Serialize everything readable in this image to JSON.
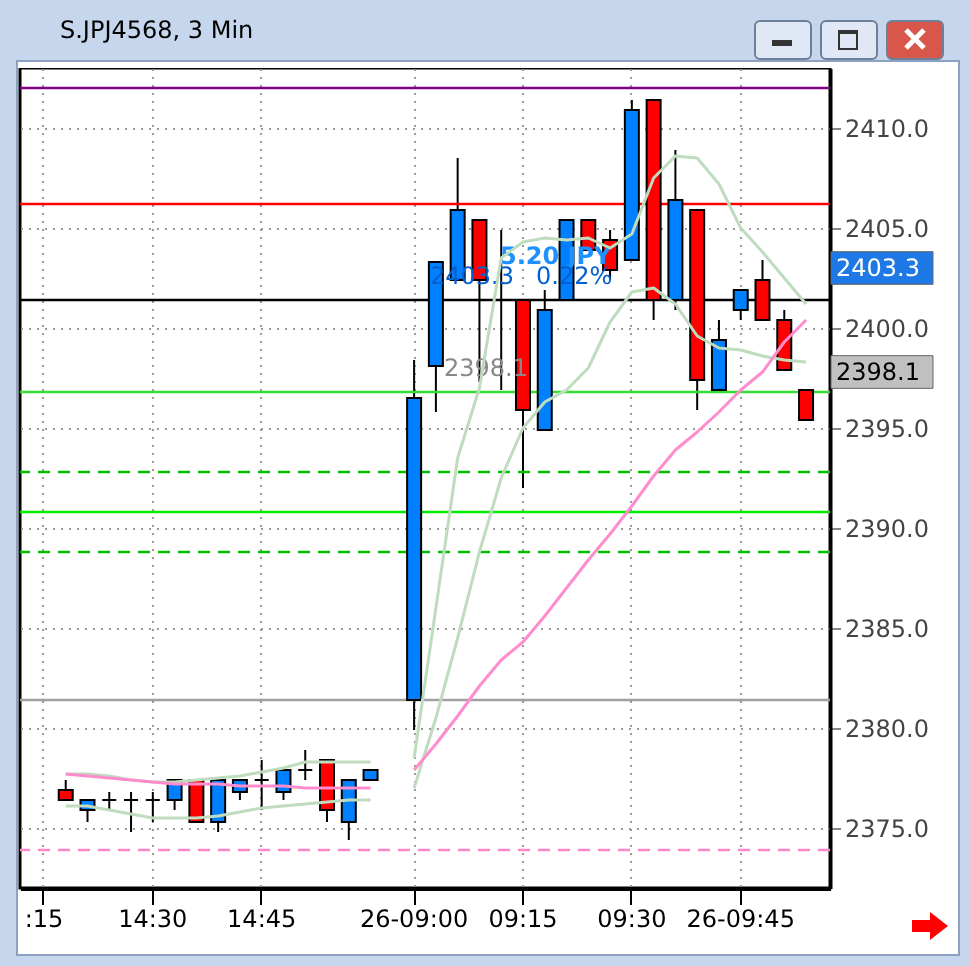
{
  "chart_data": {
    "type": "candlestick",
    "title": "S.JPJ4568, 3 Min",
    "categories": [
      ":15",
      null,
      null,
      null,
      null,
      "14:30",
      null,
      null,
      null,
      null,
      "14:45",
      null,
      null,
      null,
      null,
      null,
      null,
      "26-09:00",
      null,
      null,
      null,
      null,
      "09:15",
      null,
      null,
      null,
      null,
      "09:30",
      null,
      null,
      null,
      null,
      "26-09:45",
      null,
      null,
      null
    ],
    "ohlc": [
      null,
      [
        2376.9,
        2377.4,
        2376.4,
        2376.4
      ],
      [
        2375.9,
        2376.4,
        2375.3,
        2376.4
      ],
      [
        2376.4,
        2376.8,
        2375.9,
        2376.4
      ],
      [
        2376.4,
        2376.8,
        2374.8,
        2376.4
      ],
      [
        2376.4,
        2376.8,
        2375.3,
        2376.4
      ],
      [
        2376.4,
        2377.4,
        2375.9,
        2377.4
      ],
      [
        2377.4,
        2377.4,
        2375.3,
        2375.3
      ],
      [
        2375.3,
        2377.4,
        2374.8,
        2377.4
      ],
      [
        2376.8,
        2377.4,
        2376.4,
        2377.4
      ],
      [
        2377.4,
        2378.4,
        2375.9,
        2377.4
      ],
      [
        2376.8,
        2377.9,
        2376.4,
        2377.9
      ],
      [
        2377.9,
        2378.9,
        2377.4,
        2377.9
      ],
      [
        2378.4,
        2378.4,
        2375.3,
        2375.9
      ],
      [
        2375.3,
        2377.4,
        2374.4,
        2377.4
      ],
      [
        2377.4,
        2377.9,
        2377.4,
        2377.9
      ],
      null,
      [
        2381.4,
        2398.4,
        2379.9,
        2396.5
      ],
      [
        2398.1,
        2403.3,
        2395.8,
        2403.3
      ],
      [
        2402.4,
        2408.5,
        2402.4,
        2405.9
      ],
      [
        2405.4,
        2405.4,
        2397.3,
        2402.4
      ],
      [
        2401.4,
        2404.9,
        2396.9,
        2401.4
      ],
      [
        2401.4,
        2401.4,
        2392.0,
        2395.9
      ],
      [
        2394.9,
        2401.9,
        2394.9,
        2400.9
      ],
      [
        2401.4,
        2405.4,
        2401.4,
        2405.4
      ],
      [
        2405.4,
        2405.4,
        2403.9,
        2403.9
      ],
      [
        2404.4,
        2404.9,
        2402.4,
        2402.9
      ],
      [
        2403.4,
        2411.4,
        2403.4,
        2410.9
      ],
      [
        2411.4,
        2411.4,
        2400.4,
        2401.4
      ],
      [
        2401.4,
        2408.9,
        2400.9,
        2406.4
      ],
      [
        2405.9,
        2405.9,
        2395.9,
        2397.4
      ],
      [
        2396.9,
        2400.4,
        2396.9,
        2399.4
      ],
      [
        2400.9,
        2401.9,
        2400.4,
        2401.9
      ],
      [
        2402.4,
        2403.4,
        2400.4,
        2400.4
      ],
      [
        2400.4,
        2400.9,
        2397.9,
        2397.9
      ],
      [
        2396.9,
        2396.9,
        2395.4,
        2395.4
      ]
    ],
    "colors": [
      null,
      "#ff0000",
      "#0080ff",
      "#000000",
      "#000000",
      "#000000",
      "#0080ff",
      "#ff0000",
      "#0080ff",
      "#0080ff",
      "#000000",
      "#0080ff",
      "#000000",
      "#ff0000",
      "#0080ff",
      "#0080ff",
      null,
      "#0080ff",
      "#0080ff",
      "#0080ff",
      "#ff0000",
      "#000000",
      "#ff0000",
      "#0080ff",
      "#0080ff",
      "#ff0000",
      "#ff0000",
      "#0080ff",
      "#ff0000",
      "#0080ff",
      "#ff0000",
      "#0080ff",
      "#0080ff",
      "#ff0000",
      "#ff0000",
      "#ff0000"
    ],
    "series": [
      {
        "type": "line",
        "color": "#bfdcbf",
        "values": [
          null,
          2377.7,
          2377.7,
          2377.6,
          2377.4,
          2377.3,
          2377.3,
          2377.4,
          2377.5,
          2377.6,
          2377.8,
          2378.0,
          2378.3,
          2378.3,
          2378.3,
          2378.3,
          null,
          2378.5,
          2386.0,
          2393.5,
          2397.0,
          2403.5,
          2404.3,
          2404.5,
          2404.4,
          2404.5,
          2404.0,
          2404.7,
          2407.5,
          2408.6,
          2408.5,
          2407.2,
          2405.0,
          2403.8,
          2402.5,
          2401.2
        ]
      },
      {
        "type": "line",
        "color": "#bfdcbf",
        "values": [
          null,
          2376.1,
          2376.1,
          2375.9,
          2375.7,
          2375.5,
          2375.5,
          2375.5,
          2375.6,
          2375.8,
          2376.0,
          2376.1,
          2376.2,
          2376.3,
          2376.4,
          2376.4,
          null,
          2377.0,
          2380.5,
          2384.5,
          2388.8,
          2392.5,
          2395.0,
          2396.3,
          2396.9,
          2398.0,
          2400.3,
          2401.8,
          2402.0,
          2401.2,
          2399.6,
          2399.0,
          2398.9,
          2398.6,
          2398.4,
          2398.3
        ]
      },
      {
        "type": "line",
        "color": "#ff8ccc",
        "values": [
          null,
          2377.7,
          2377.6,
          2377.5,
          2377.4,
          2377.3,
          2377.2,
          2377.2,
          2377.2,
          2377.1,
          2377.1,
          2377.1,
          2377.0,
          2377.0,
          2377.0,
          2377.0,
          null,
          2377.9,
          2379.2,
          2380.6,
          2382.1,
          2383.4,
          2384.3,
          2385.6,
          2387.0,
          2388.4,
          2389.7,
          2391.1,
          2392.6,
          2393.9,
          2394.8,
          2395.8,
          2396.9,
          2397.8,
          2399.3,
          2400.4
        ]
      }
    ],
    "ylim": [
      2372.0,
      2413.0
    ],
    "yticks": [
      {
        "value": 2375,
        "label": "2375.0"
      },
      {
        "value": 2380,
        "label": "2380.0"
      },
      {
        "value": 2385,
        "label": "2385.0"
      },
      {
        "value": 2390,
        "label": "2390.0"
      },
      {
        "value": 2395,
        "label": "2395.0"
      },
      {
        "value": 2400,
        "label": "2400.0"
      },
      {
        "value": 2405,
        "label": "2405.0"
      },
      {
        "value": 2410,
        "label": "2410.0"
      }
    ],
    "grid": true,
    "ref_lines": [
      {
        "axis": "y",
        "value": 2412.0,
        "color": "#800080",
        "line_style": "solid"
      },
      {
        "axis": "y",
        "value": 2406.2,
        "color": "#ff0000",
        "line_style": "solid"
      },
      {
        "axis": "y",
        "value": 2401.4,
        "color": "#000000",
        "line_style": "solid"
      },
      {
        "axis": "y",
        "value": 2396.8,
        "color": "#33dd33",
        "line_style": "solid"
      },
      {
        "axis": "y",
        "value": 2392.8,
        "color": "#00c000",
        "line_style": "dashed"
      },
      {
        "axis": "y",
        "value": 2390.8,
        "color": "#00ee00",
        "line_style": "solid"
      },
      {
        "axis": "y",
        "value": 2388.8,
        "color": "#00c000",
        "line_style": "dashed"
      },
      {
        "axis": "y",
        "value": 2381.4,
        "color": "#a0a0a0",
        "line_style": "solid"
      },
      {
        "axis": "y",
        "value": 2373.9,
        "color": "#ff88cc",
        "line_style": "dashed"
      }
    ],
    "annotations": [
      {
        "text": "5.20 JPY",
        "y": 2403.6
      },
      {
        "text": "2403.3",
        "y": 2402.6
      },
      {
        "text": "0.22%",
        "y": 2402.6
      },
      {
        "text": "2398.1",
        "y": 2398.0
      },
      "2403.3",
      "2398.1"
    ]
  }
}
